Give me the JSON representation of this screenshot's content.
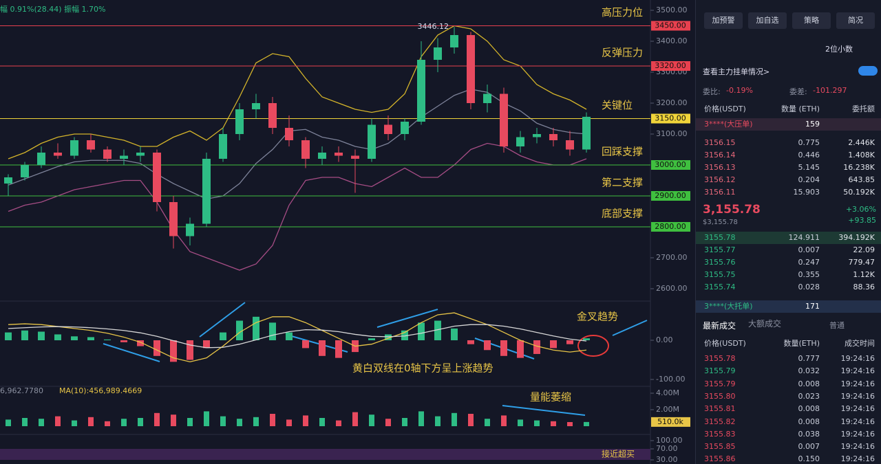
{
  "chart_data": {
    "type": "candlestick",
    "header": "幅 0.91%(28.44)  振幅 1.70%",
    "up_color": "#2ebd85",
    "down_color": "#e84a5f",
    "candles": [
      [
        2940,
        2970,
        2900,
        2960
      ],
      [
        2960,
        3010,
        2950,
        3000
      ],
      [
        3000,
        3060,
        2990,
        3040
      ],
      [
        3040,
        3070,
        3020,
        3030
      ],
      [
        3030,
        3090,
        3020,
        3080
      ],
      [
        3080,
        3100,
        3040,
        3050
      ],
      [
        3050,
        3060,
        3010,
        3020
      ],
      [
        3020,
        3050,
        3000,
        3030
      ],
      [
        3030,
        3060,
        3010,
        3040
      ],
      [
        3040,
        3050,
        2850,
        2880
      ],
      [
        2880,
        2900,
        2730,
        2770
      ],
      [
        2770,
        2830,
        2740,
        2810
      ],
      [
        2810,
        3040,
        2800,
        3020
      ],
      [
        3020,
        3120,
        3010,
        3100
      ],
      [
        3100,
        3200,
        3080,
        3180
      ],
      [
        3180,
        3230,
        3150,
        3200
      ],
      [
        3200,
        3220,
        3100,
        3120
      ],
      [
        3120,
        3160,
        3060,
        3080
      ],
      [
        3080,
        3090,
        2990,
        3020
      ],
      [
        3020,
        3060,
        3000,
        3040
      ],
      [
        3040,
        3060,
        3010,
        3030
      ],
      [
        3030,
        3050,
        2910,
        3020
      ],
      [
        3020,
        3150,
        3010,
        3130
      ],
      [
        3130,
        3160,
        3080,
        3100
      ],
      [
        3100,
        3150,
        3080,
        3140
      ],
      [
        3140,
        3400,
        3130,
        3340
      ],
      [
        3340,
        3410,
        3300,
        3380
      ],
      [
        3380,
        3446.12,
        3360,
        3420
      ],
      [
        3420,
        3430,
        3180,
        3200
      ],
      [
        3200,
        3260,
        3170,
        3230
      ],
      [
        3230,
        3250,
        3040,
        3060
      ],
      [
        3060,
        3110,
        3040,
        3090
      ],
      [
        3090,
        3120,
        3070,
        3100
      ],
      [
        3100,
        3120,
        3060,
        3080
      ],
      [
        3080,
        3110,
        3030,
        3050
      ],
      [
        3050,
        3170,
        3040,
        3155.78
      ]
    ],
    "bands": [
      {
        "color": "#d4b42a",
        "values": [
          3020,
          3040,
          3070,
          3090,
          3100,
          3100,
          3090,
          3080,
          3060,
          3060,
          3090,
          3110,
          3080,
          3120,
          3220,
          3330,
          3360,
          3350,
          3280,
          3220,
          3200,
          3180,
          3170,
          3180,
          3230,
          3350,
          3420,
          3450,
          3440,
          3400,
          3340,
          3320,
          3260,
          3230,
          3210,
          3180
        ]
      },
      {
        "color": "#7d8299",
        "values": [
          2935,
          2955,
          2975,
          2995,
          3010,
          3015,
          3015,
          3015,
          3005,
          2970,
          2940,
          2915,
          2890,
          2900,
          2940,
          3005,
          3050,
          3110,
          3115,
          3090,
          3080,
          3060,
          3050,
          3070,
          3110,
          3155,
          3190,
          3225,
          3245,
          3235,
          3200,
          3175,
          3135,
          3115,
          3105,
          3100
        ]
      },
      {
        "color": "#a64d85",
        "values": [
          2850,
          2870,
          2880,
          2900,
          2920,
          2930,
          2940,
          2950,
          2950,
          2880,
          2790,
          2720,
          2700,
          2680,
          2660,
          2680,
          2740,
          2870,
          2950,
          2960,
          2960,
          2940,
          2930,
          2960,
          2990,
          2960,
          2960,
          3000,
          3050,
          3070,
          3060,
          3030,
          3010,
          3000,
          3000,
          3020
        ]
      }
    ],
    "ylim": [
      2600,
      3500
    ],
    "yticks": [
      {
        "value": 2600,
        "label": "2600.00"
      },
      {
        "value": 2700,
        "label": "2700.00"
      },
      {
        "value": 3100,
        "label": "3100.00"
      },
      {
        "value": 3200,
        "label": "3200.00"
      },
      {
        "value": 3300,
        "label": "3300.00"
      },
      {
        "value": 3400,
        "label": "3400.00"
      },
      {
        "value": 3500,
        "label": "3500.00"
      }
    ],
    "levels": [
      {
        "value": 3450,
        "label": "3450.00",
        "note": "高压力位",
        "color": "#e8414f"
      },
      {
        "value": 3320,
        "label": "3320.00",
        "note": "反弹压力",
        "color": "#e8414f"
      },
      {
        "value": 3150,
        "label": "3150.00",
        "note": "关键位",
        "color": "#f0d43a"
      },
      {
        "value": 3000,
        "label": "3000.00",
        "note": "回踩支撑",
        "color": "#3fbf3f"
      },
      {
        "value": 2900,
        "label": "2900.00",
        "note": "第二支撑",
        "color": "#3fbf3f"
      },
      {
        "value": 2800,
        "label": "2800.00",
        "note": "底部支撑",
        "color": "#3fbf3f"
      }
    ],
    "macd": {
      "ylim": [
        -100,
        100
      ],
      "yticks": [
        {
          "value": 0,
          "label": "0.00"
        },
        {
          "value": -100,
          "label": "-100.00"
        }
      ],
      "histogram": [
        20,
        25,
        22,
        15,
        10,
        8,
        2,
        -5,
        -15,
        -40,
        -55,
        -50,
        -20,
        20,
        50,
        60,
        45,
        20,
        -20,
        -40,
        -45,
        -30,
        5,
        15,
        25,
        45,
        50,
        30,
        -10,
        -25,
        -40,
        -45,
        -35,
        -20,
        -10,
        5
      ],
      "dif": [
        40,
        42,
        40,
        35,
        30,
        25,
        18,
        8,
        -5,
        -25,
        -45,
        -55,
        -45,
        -15,
        20,
        45,
        60,
        60,
        45,
        25,
        5,
        -15,
        -10,
        5,
        20,
        45,
        65,
        70,
        55,
        40,
        20,
        0,
        -15,
        -25,
        -30,
        -25
      ],
      "dea": [
        30,
        32,
        34,
        35,
        34,
        32,
        29,
        25,
        19,
        10,
        -1,
        -12,
        -19,
        -18,
        -10,
        1,
        13,
        22,
        27,
        26,
        22,
        15,
        10,
        9,
        11,
        18,
        27,
        36,
        40,
        40,
        36,
        29,
        20,
        11,
        3,
        -2
      ],
      "dif_color": "#e8c547",
      "dea_color": "#d8d8d8"
    },
    "volume": {
      "header": "6,962.7780",
      "ma": "MA(10):456,989.4669",
      "ylim": [
        0,
        4000000
      ],
      "yticks": [
        {
          "value": 2000000,
          "label": "2.00M"
        },
        {
          "value": 4000000,
          "label": "4.00M"
        }
      ],
      "current": {
        "value": 510000,
        "label": "510.0k"
      },
      "values": [
        800000,
        1000000,
        900000,
        1200000,
        700000,
        1100000,
        600000,
        900000,
        1000000,
        1600000,
        1400000,
        1000000,
        1800000,
        1200000,
        900000,
        1100000,
        1500000,
        800000,
        1300000,
        1000000,
        700000,
        1700000,
        1400000,
        900000,
        1000000,
        1800000,
        1200000,
        1600000,
        1500000,
        900000,
        1300000,
        800000,
        700000,
        600000,
        500000,
        510000
      ]
    },
    "rsi": {
      "ylim": [
        0,
        100
      ],
      "yticks": [
        {
          "value": 30,
          "label": "30.00"
        },
        {
          "value": 70,
          "label": "70.00"
        },
        {
          "value": 100,
          "label": "100.00"
        }
      ]
    },
    "notes": [
      "金叉趋势",
      "黄白双线在0轴下方呈上涨趋势",
      "量能萎缩",
      "接近超买"
    ]
  },
  "panel": {
    "buttons": [
      "加预警",
      "加自选",
      "策略",
      "简况"
    ],
    "decimals": "2位小数",
    "depth_link": "查看主力挂单情况>",
    "ratio_label": "委比:",
    "ratio": "-0.19%",
    "diff_label": "委差:",
    "diff": "-101.297",
    "book_header": [
      "价格(USDT)",
      "数量 (ETH)",
      "委托额"
    ],
    "big_ask": {
      "name": "3****(大压单)",
      "qty": "159"
    },
    "asks": [
      [
        "3156.15",
        "0.775",
        "2.446K"
      ],
      [
        "3156.14",
        "0.446",
        "1.408K"
      ],
      [
        "3156.13",
        "5.145",
        "16.238K"
      ],
      [
        "3156.12",
        "0.204",
        "643.85"
      ],
      [
        "3156.11",
        "15.903",
        "50.192K"
      ]
    ],
    "last": {
      "price": "3,155.78",
      "usd": "$3,155.78",
      "pct": "+3.06%",
      "chg": "+93.85"
    },
    "bids": [
      [
        "3155.78",
        "124.911",
        "394.192K"
      ],
      [
        "3155.77",
        "0.007",
        "22.09"
      ],
      [
        "3155.76",
        "0.247",
        "779.47"
      ],
      [
        "3155.75",
        "0.355",
        "1.12K"
      ],
      [
        "3155.74",
        "0.028",
        "88.36"
      ]
    ],
    "big_bid": {
      "name": "3****(大托单)",
      "qty": "171"
    },
    "tabs": [
      "最新成交",
      "大额成交"
    ],
    "filter": "普通",
    "trade_header": [
      "价格(USDT)",
      "数量(ETH)",
      "成交时间"
    ],
    "trades": [
      {
        "price": "3155.78",
        "qty": "0.777",
        "time": "19:24:16",
        "color": "#e84a5f"
      },
      {
        "price": "3155.79",
        "qty": "0.032",
        "time": "19:24:16",
        "color": "#2ebd85"
      },
      {
        "price": "3155.79",
        "qty": "0.008",
        "time": "19:24:16",
        "color": "#e84a5f"
      },
      {
        "price": "3155.80",
        "qty": "0.023",
        "time": "19:24:16",
        "color": "#e84a5f"
      },
      {
        "price": "3155.81",
        "qty": "0.008",
        "time": "19:24:16",
        "color": "#e84a5f"
      },
      {
        "price": "3155.82",
        "qty": "0.008",
        "time": "19:24:16",
        "color": "#e84a5f"
      },
      {
        "price": "3155.83",
        "qty": "0.038",
        "time": "19:24:16",
        "color": "#e84a5f"
      },
      {
        "price": "3155.85",
        "qty": "0.007",
        "time": "19:24:16",
        "color": "#e84a5f"
      },
      {
        "price": "3155.86",
        "qty": "0.150",
        "time": "19:24:16",
        "color": "#e84a5f"
      }
    ]
  }
}
